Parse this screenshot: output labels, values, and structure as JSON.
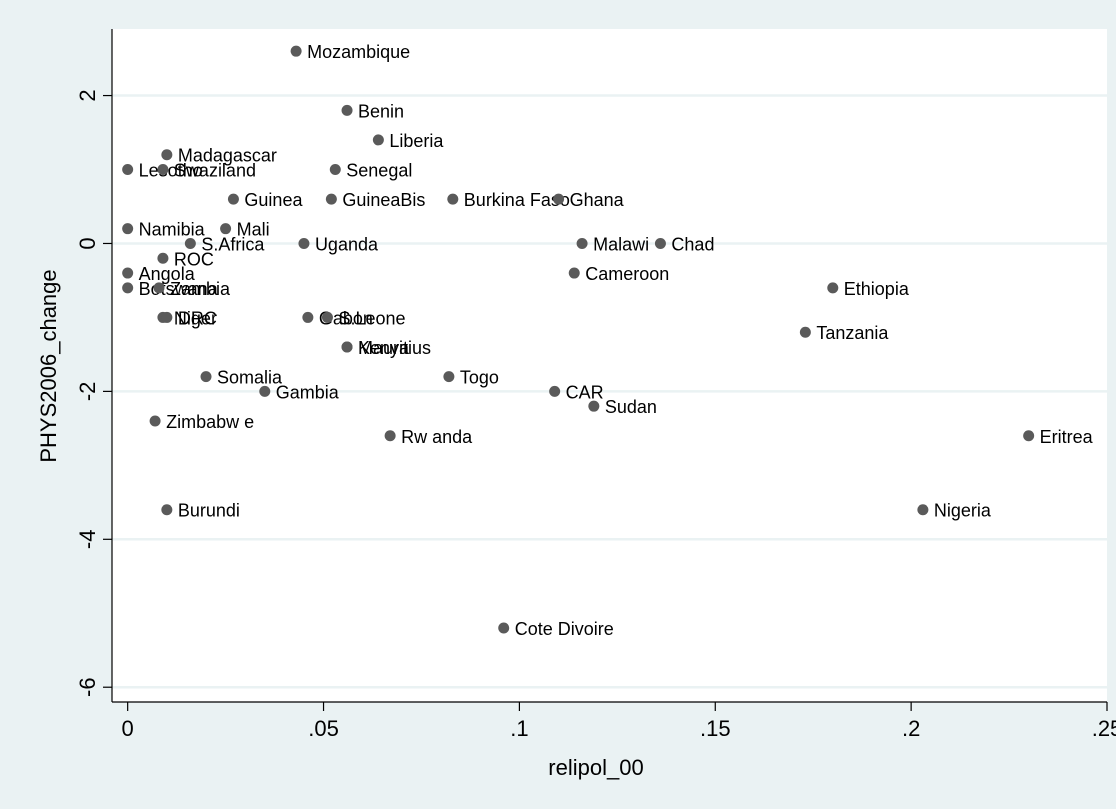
{
  "chart_data": {
    "type": "scatter",
    "title": "",
    "xlabel": "relipol_00",
    "ylabel": "PHYS2006_change",
    "xlim": [
      -0.004,
      0.25
    ],
    "ylim": [
      -6.2,
      2.9
    ],
    "xticks": [
      0,
      0.05,
      0.1,
      0.15,
      0.2,
      0.25
    ],
    "xtick_labels": [
      "0",
      ".05",
      ".1",
      ".15",
      ".2",
      ".25"
    ],
    "yticks": [
      -6,
      -4,
      -2,
      0,
      2
    ],
    "ytick_labels": [
      "-6",
      "-4",
      "-2",
      "0",
      "2"
    ],
    "grid": "horizontal",
    "legend": "none",
    "colors": {
      "marker": "#5a5a5a",
      "background": "#eaf2f3",
      "plot_area": "#ffffff",
      "grid": "#eaf2f3"
    },
    "points": [
      {
        "label": "Mozambique",
        "x": 0.043,
        "y": 2.6
      },
      {
        "label": "Benin",
        "x": 0.056,
        "y": 1.8
      },
      {
        "label": "Liberia",
        "x": 0.064,
        "y": 1.4
      },
      {
        "label": "Madagascar",
        "x": 0.01,
        "y": 1.2
      },
      {
        "label": "Lesotho",
        "x": 0.0,
        "y": 1.0
      },
      {
        "label": "Swaziland",
        "x": 0.009,
        "y": 1.0
      },
      {
        "label": "Senegal",
        "x": 0.053,
        "y": 1.0
      },
      {
        "label": "Guinea",
        "x": 0.027,
        "y": 0.6
      },
      {
        "label": "GuineaBis",
        "x": 0.052,
        "y": 0.6
      },
      {
        "label": "Burkina Faso",
        "x": 0.083,
        "y": 0.6
      },
      {
        "label": "Ghana",
        "x": 0.11,
        "y": 0.6
      },
      {
        "label": "Namibia",
        "x": 0.0,
        "y": 0.2
      },
      {
        "label": "Mali",
        "x": 0.025,
        "y": 0.2
      },
      {
        "label": "S.Africa",
        "x": 0.016,
        "y": 0.0
      },
      {
        "label": "Uganda",
        "x": 0.045,
        "y": 0.0
      },
      {
        "label": "Malawi",
        "x": 0.116,
        "y": 0.0
      },
      {
        "label": "Chad",
        "x": 0.136,
        "y": 0.0
      },
      {
        "label": "ROC",
        "x": 0.009,
        "y": -0.2
      },
      {
        "label": "Angola",
        "x": 0.0,
        "y": -0.4
      },
      {
        "label": "Cameroon",
        "x": 0.114,
        "y": -0.4
      },
      {
        "label": "Botswana",
        "x": 0.0,
        "y": -0.6
      },
      {
        "label": "Zambia",
        "x": 0.008,
        "y": -0.6
      },
      {
        "label": "Ethiopia",
        "x": 0.18,
        "y": -0.6
      },
      {
        "label": "Niger",
        "x": 0.009,
        "y": -1.0
      },
      {
        "label": "DRC",
        "x": 0.01,
        "y": -1.0
      },
      {
        "label": "Gabon",
        "x": 0.046,
        "y": -1.0
      },
      {
        "label": "S.Leone",
        "x": 0.051,
        "y": -1.0
      },
      {
        "label": "Tanzania",
        "x": 0.173,
        "y": -1.2
      },
      {
        "label": "Kenya",
        "x": 0.056,
        "y": -1.4
      },
      {
        "label": "Mauritius",
        "x": 0.056,
        "y": -1.4
      },
      {
        "label": "Somalia",
        "x": 0.02,
        "y": -1.8
      },
      {
        "label": "Togo",
        "x": 0.082,
        "y": -1.8
      },
      {
        "label": "Gambia",
        "x": 0.035,
        "y": -2.0
      },
      {
        "label": "CAR",
        "x": 0.109,
        "y": -2.0
      },
      {
        "label": "Sudan",
        "x": 0.119,
        "y": -2.2
      },
      {
        "label": "Zimbabw e",
        "x": 0.007,
        "y": -2.4
      },
      {
        "label": "Rw anda",
        "x": 0.067,
        "y": -2.6
      },
      {
        "label": "Eritrea",
        "x": 0.23,
        "y": -2.6
      },
      {
        "label": "Burundi",
        "x": 0.01,
        "y": -3.6
      },
      {
        "label": "Nigeria",
        "x": 0.203,
        "y": -3.6
      },
      {
        "label": "Cote Divoire",
        "x": 0.096,
        "y": -5.2
      }
    ]
  }
}
